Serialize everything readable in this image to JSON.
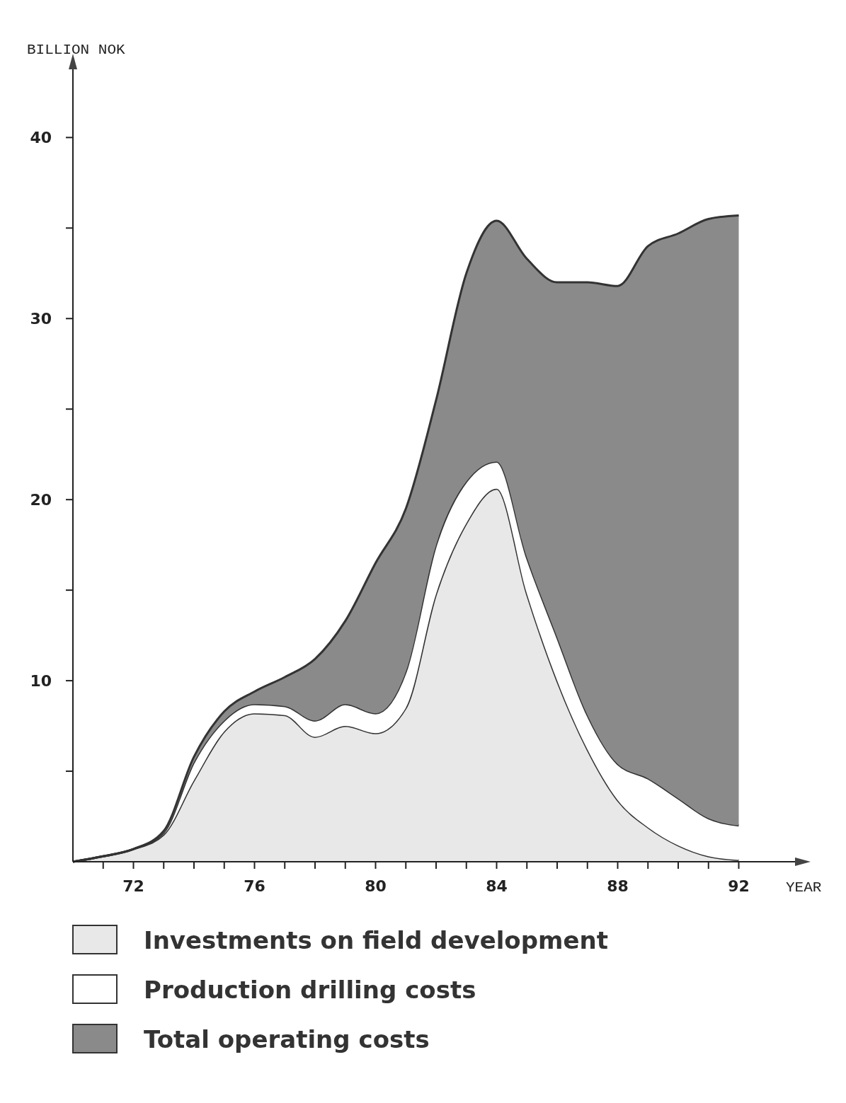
{
  "chart_data": {
    "type": "area",
    "stacked": true,
    "xlabel": "YEAR",
    "ylabel": "BILLION NOK",
    "x": [
      70,
      71,
      72,
      73,
      74,
      75,
      76,
      77,
      78,
      79,
      80,
      81,
      82,
      83,
      84,
      85,
      86,
      87,
      88,
      89,
      90,
      91,
      92
    ],
    "series": [
      {
        "name": "Investments on field development",
        "color": "#e8e8e8",
        "values": [
          0,
          0.3,
          0.7,
          1.5,
          4.5,
          7.2,
          8.2,
          8.1,
          6.9,
          7.5,
          7.1,
          8.5,
          14.8,
          18.7,
          20.6,
          14.8,
          10,
          6.2,
          3.4,
          1.9,
          0.9,
          0.3,
          0.1
        ]
      },
      {
        "name": "Production drilling costs",
        "color": "#ffffff",
        "values": [
          0,
          0,
          0,
          0.1,
          1,
          0.6,
          0.5,
          0.5,
          0.9,
          1.2,
          1.1,
          2,
          2.7,
          2.3,
          1.5,
          2,
          2.4,
          1.9,
          2,
          2.7,
          2.6,
          2.1,
          1.9
        ]
      },
      {
        "name": "Total operating costs",
        "color": "#8a8a8a",
        "values": [
          0,
          0,
          0,
          0.1,
          0.3,
          0.5,
          0.7,
          1.6,
          3.4,
          4.6,
          8.3,
          9,
          8,
          11.5,
          13.3,
          16.5,
          19.6,
          23.9,
          26.4,
          29.4,
          31.2,
          33.1,
          33.7
        ]
      }
    ],
    "xlim": [
      70,
      94
    ],
    "xticks": [
      {
        "value": 71,
        "label": null
      },
      72,
      {
        "value": 73,
        "label": null
      },
      {
        "value": 74,
        "label": null
      },
      {
        "value": 75,
        "label": null
      },
      76,
      {
        "value": 77,
        "label": null
      },
      {
        "value": 78,
        "label": null
      },
      {
        "value": 79,
        "label": null
      },
      80,
      {
        "value": 81,
        "label": null
      },
      {
        "value": 82,
        "label": null
      },
      {
        "value": 83,
        "label": null
      },
      84,
      {
        "value": 85,
        "label": null
      },
      {
        "value": 86,
        "label": null
      },
      {
        "value": 87,
        "label": null
      },
      88,
      {
        "value": 89,
        "label": null
      },
      {
        "value": 90,
        "label": null
      },
      {
        "value": 91,
        "label": null
      },
      92
    ],
    "ylim": [
      0,
      44
    ],
    "yticks": [
      {
        "value": 5,
        "label": null
      },
      10,
      {
        "value": 15,
        "label": null
      },
      20,
      {
        "value": 25,
        "label": null
      },
      30,
      {
        "value": 35,
        "label": null
      },
      40
    ],
    "grid": false,
    "legend": "bottom"
  }
}
